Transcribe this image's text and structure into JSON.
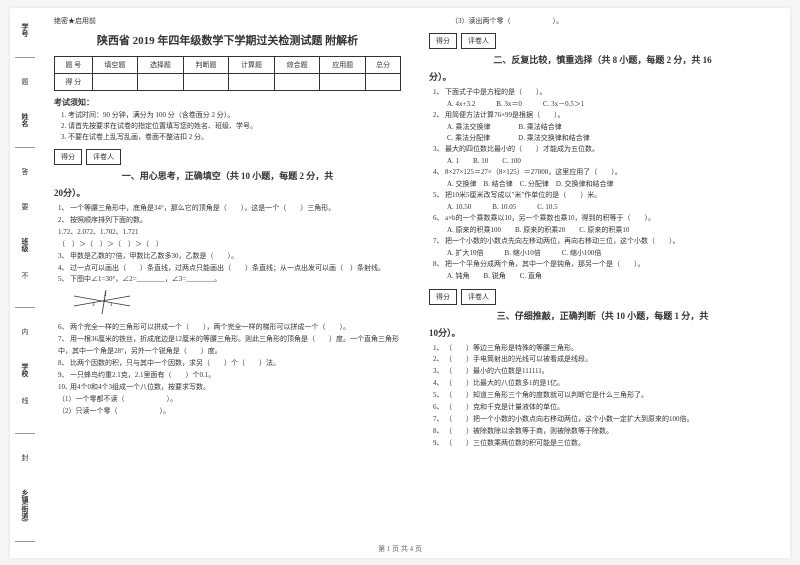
{
  "binding": {
    "labels": [
      "学号",
      "姓名",
      "班级",
      "学校",
      "乡镇(街道)"
    ],
    "chars": [
      "题",
      "答",
      "要",
      "不",
      "内",
      "线",
      "封"
    ]
  },
  "header": {
    "mark": "绝密★启用前",
    "title": "陕西省 2019 年四年级数学下学期过关检测试题 附解析"
  },
  "score_table": {
    "row1": [
      "题  号",
      "填空题",
      "选择题",
      "判断题",
      "计算题",
      "综合题",
      "应用题",
      "总分"
    ],
    "row2": [
      "得  分",
      "",
      "",
      "",
      "",
      "",
      "",
      ""
    ]
  },
  "notice": {
    "heading": "考试须知：",
    "items": [
      "考试时间：90 分钟，满分为 100 分（含卷面分 2 分）。",
      "请首先按要求在试卷的指定位置填写您的姓名、班级、学号。",
      "不要在试卷上乱写乱画，卷面不整洁扣 2 分。"
    ]
  },
  "sec_bar": {
    "left": "得分",
    "right": "评卷人"
  },
  "section1": {
    "title": "一、用心思考，正确填空（共 10 小题，每题 2 分，共",
    "tail": "20分）。",
    "items": [
      "一个等腰三角形中，底角是34°，那么它的顶角是（　　），这是一个（　　）三角形。",
      "按照顺序排列下面的数。\n1.72、2.072、1.702、1.721\n（　）＞（　）＞（　）＞（　）",
      "甲数是乙数的7倍，甲数比乙数多30，乙数是（　　）。",
      "过一点可以画出（　　）条直线，过两点只能画出（　　）条直线；从一点出发可以画（　）条射线。",
      "下图中∠1=30°，∠2=________，∠3=________。",
      "两个完全一样的三角形可以拼成一个（　　），两个完全一样的梯形可以拼成一个（　　）。",
      "用一根36厘米的铁丝，折成底边是12厘米的等腰三角形。则此三角形的顶角是（　　）度。一个直角三角形中，其中一个角是28°，另外一个锐角是（　　）度。",
      "比两个因数的积，只与其中一个因数，求另（　　）个（　　）法。",
      "一只蜂鸟约重2.1克，2.1里面有（　　）个0.1。",
      "用4个0和4个3组成一个八位数，按要求写数。\n（1）一个零都不读（　　　　　　）。\n（2）只读一个零（　　　　　　）。"
    ]
  },
  "right_top": "（3）读出两个零（　　　　　　）。",
  "section2": {
    "title": "二、反复比较，慎重选择（共 8 小题，每题 2 分，共 16",
    "tail": "分）。",
    "items": [
      {
        "q": "下面式子中是方程的是（　　）。",
        "opts": "A. 4x+3.2　　　B. 3x＝0　　　C. 3x－0.5＞1"
      },
      {
        "q": "用简便方法计算76×99是根据（　　）。",
        "opts": "A. 乘法交换律　　　　B. 乘法结合律\nC. 乘法分配律　　　　D. 乘法交换律和结合律"
      },
      {
        "q": "最大的四位数比最小的（　　）才能成为五位数。",
        "opts": "A. 1　　B. 10　　C. 100"
      },
      {
        "q": "8×27×125＝27×（8×125）＝27000，这里应用了（　　）。",
        "opts": "A. 交换律　B. 结合律　C. 分配律　D. 交换律和结合律"
      },
      {
        "q": "把10米5厘米改写成以\"米\"作单位的是（　　）米。",
        "opts": "A. 10.50　　　B. 10.05　　　C. 10.5"
      },
      {
        "q": "a×b的一个乘数乘以10，另一个乘数也乘10，得到的积等于（　　）。",
        "opts": "A. 原来的积乘100　　B. 原来的积乘20　　C. 原来的积乘10"
      },
      {
        "q": "把一个小数的小数点先向左移动两位，再向右移动三位，这个小数（　　）。",
        "opts": "A. 扩大10倍　　　B. 缩小10倍　　　C. 缩小100倍"
      },
      {
        "q": "把一个平角分成两个角，其中一个是钝角，那另一个是（　　）。",
        "opts": "A. 钝角　　B. 锐角　　C. 直角"
      }
    ]
  },
  "section3": {
    "title": "三、仔细推敲，正确判断（共 10 小题，每题 1 分，共",
    "tail": "10分）。",
    "items": [
      "（　　）等边三角形是特殊的等腰三角形。",
      "（　　）手电筒射出的光线可以被看成是线段。",
      "（　　）最小的六位数是111111。",
      "（　　）比最大的八位数多1的是1亿。",
      "（　　）知道三角形三个角的度数就可以判断它是什么三角形了。",
      "（　　）克和千克是计量液体的单位。",
      "（　　）把一个小数的小数点向右移动两位，这个小数一定扩大到原来的100倍。",
      "（　　）被除数除以余数等于商，则被除数等于除数。",
      "（　　）三位数乘两位数的积可能是三位数。"
    ]
  },
  "footer": "第 1 页 共 4 页",
  "diagram": {
    "stroke": "#333",
    "labels": [
      "1",
      "2",
      "3"
    ]
  }
}
